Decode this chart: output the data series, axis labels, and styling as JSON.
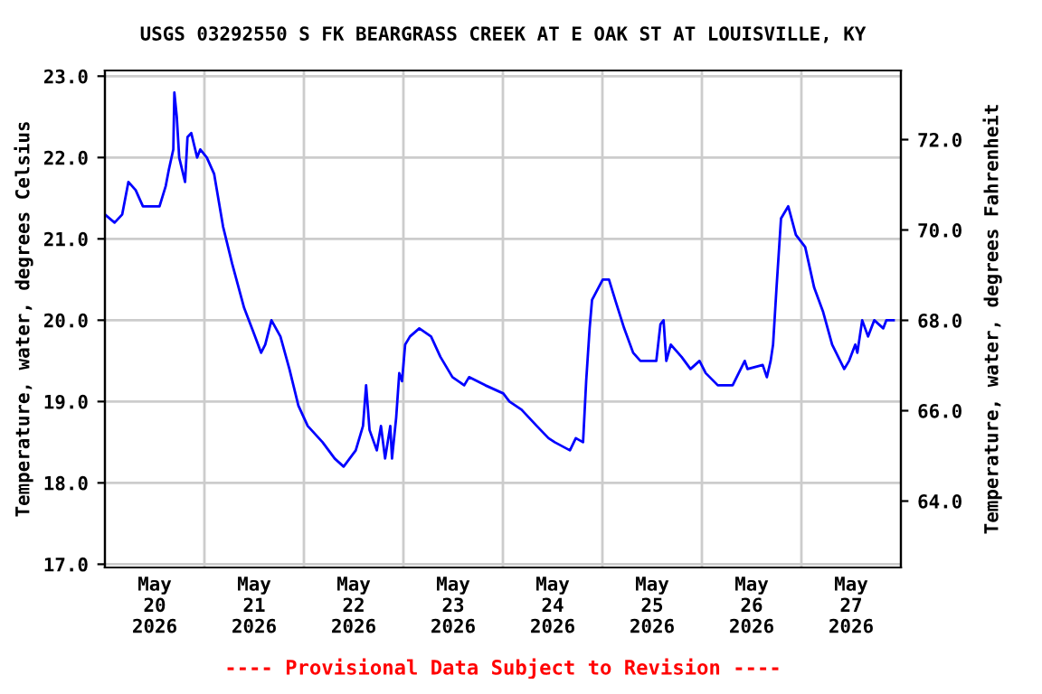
{
  "chart_data": {
    "type": "line",
    "title": "USGS 03292550 S FK BEARGRASS CREEK AT E OAK ST AT LOUISVILLE, KY",
    "ylabel": "Temperature, water, degrees Celsius",
    "y2label": "Temperature, water, degrees Fahrenheit",
    "annotations": [
      "---- Provisional Data Subject to Revision ----"
    ],
    "x": [
      "2026-05-20T00:00",
      "2026-05-20T02:20",
      "2026-05-20T04:10",
      "2026-05-20T05:40",
      "2026-05-20T07:25",
      "2026-05-20T09:10",
      "2026-05-20T13:10",
      "2026-05-20T14:40",
      "2026-05-20T15:25",
      "2026-05-20T16:30",
      "2026-05-20T16:45",
      "2026-05-20T17:20",
      "2026-05-20T17:55",
      "2026-05-20T19:20",
      "2026-05-20T19:55",
      "2026-05-20T20:50",
      "2026-05-20T22:15",
      "2026-05-20T23:00",
      "2026-05-21T00:35",
      "2026-05-21T02:20",
      "2026-05-21T04:30",
      "2026-05-21T06:40",
      "2026-05-21T09:35",
      "2026-05-21T11:50",
      "2026-05-21T13:40",
      "2026-05-21T14:40",
      "2026-05-21T16:10",
      "2026-05-21T18:20",
      "2026-05-21T20:30",
      "2026-05-21T22:40",
      "2026-05-22T00:55",
      "2026-05-22T04:30",
      "2026-05-22T07:25",
      "2026-05-22T09:35",
      "2026-05-22T12:30",
      "2026-05-22T14:15",
      "2026-05-22T15:00",
      "2026-05-22T15:50",
      "2026-05-22T17:35",
      "2026-05-22T18:35",
      "2026-05-22T19:35",
      "2026-05-22T20:50",
      "2026-05-22T21:15",
      "2026-05-22T22:15",
      "2026-05-22T23:00",
      "2026-05-22T23:40",
      "2026-05-23T00:25",
      "2026-05-23T01:35",
      "2026-05-23T03:50",
      "2026-05-23T06:40",
      "2026-05-23T08:55",
      "2026-05-23T11:50",
      "2026-05-23T14:40",
      "2026-05-23T15:50",
      "2026-05-23T19:45",
      "2026-05-24T00:05",
      "2026-05-24T01:35",
      "2026-05-24T04:30",
      "2026-05-24T08:10",
      "2026-05-24T11:00",
      "2026-05-24T12:30",
      "2026-05-24T16:10",
      "2026-05-24T17:35",
      "2026-05-24T19:20",
      "2026-05-24T20:05",
      "2026-05-24T20:55",
      "2026-05-24T21:30",
      "2026-05-25T00:05",
      "2026-05-25T01:35",
      "2026-05-25T03:05",
      "2026-05-25T05:15",
      "2026-05-25T07:25",
      "2026-05-25T09:10",
      "2026-05-25T13:00",
      "2026-05-25T14:00",
      "2026-05-25T14:45",
      "2026-05-25T15:25",
      "2026-05-25T16:30",
      "2026-05-25T19:05",
      "2026-05-25T21:15",
      "2026-05-25T23:25",
      "2026-05-26T00:55",
      "2026-05-26T03:50",
      "2026-05-26T07:25",
      "2026-05-26T10:20",
      "2026-05-26T11:00",
      "2026-05-26T14:40",
      "2026-05-26T15:40",
      "2026-05-26T16:35",
      "2026-05-26T17:10",
      "2026-05-26T18:00",
      "2026-05-26T19:05",
      "2026-05-26T20:50",
      "2026-05-26T22:40",
      "2026-05-27T00:55",
      "2026-05-27T03:05",
      "2026-05-27T05:15",
      "2026-05-27T07:25",
      "2026-05-27T10:20",
      "2026-05-27T11:30",
      "2026-05-27T13:00",
      "2026-05-27T13:30",
      "2026-05-27T14:40",
      "2026-05-27T16:05",
      "2026-05-27T17:35",
      "2026-05-27T19:45",
      "2026-05-27T20:30",
      "2026-05-27T22:15"
    ],
    "series": [
      {
        "color": "#0000ff",
        "values": [
          21.3,
          21.2,
          21.3,
          21.7,
          21.6,
          21.4,
          21.4,
          21.65,
          21.85,
          22.1,
          22.8,
          22.5,
          22.0,
          21.7,
          22.25,
          22.3,
          22.0,
          22.1,
          22.0,
          21.8,
          21.15,
          20.7,
          20.15,
          19.85,
          19.6,
          19.7,
          20.0,
          19.8,
          19.4,
          18.95,
          18.7,
          18.5,
          18.3,
          18.2,
          18.4,
          18.7,
          19.2,
          18.65,
          18.4,
          18.7,
          18.3,
          18.7,
          18.3,
          18.8,
          19.35,
          19.25,
          19.7,
          19.8,
          19.9,
          19.8,
          19.55,
          19.3,
          19.2,
          19.3,
          19.2,
          19.1,
          19.0,
          18.9,
          18.7,
          18.55,
          18.5,
          18.4,
          18.55,
          18.5,
          19.25,
          19.9,
          20.25,
          20.5,
          20.5,
          20.25,
          19.9,
          19.6,
          19.5,
          19.5,
          19.95,
          20.0,
          19.5,
          19.7,
          19.55,
          19.4,
          19.5,
          19.35,
          19.2,
          19.2,
          19.5,
          19.4,
          19.45,
          19.3,
          19.5,
          19.7,
          20.4,
          21.25,
          21.4,
          21.05,
          20.9,
          20.4,
          20.1,
          19.7,
          19.4,
          19.5,
          19.7,
          19.6,
          20.0,
          19.8,
          20.0,
          19.9,
          20.0,
          20.0
        ]
      }
    ],
    "xlim": [
      "2026-05-20T00:00",
      "2026-05-28T00:00"
    ],
    "xticks": [
      {
        "value": "2026-05-20T12:00",
        "label": "May\n20\n2026"
      },
      {
        "value": "2026-05-21T00:00",
        "label": null
      },
      {
        "value": "2026-05-21T12:00",
        "label": "May\n21\n2026"
      },
      {
        "value": "2026-05-22T00:00",
        "label": null
      },
      {
        "value": "2026-05-22T12:00",
        "label": "May\n22\n2026"
      },
      {
        "value": "2026-05-23T00:00",
        "label": null
      },
      {
        "value": "2026-05-23T12:00",
        "label": "May\n23\n2026"
      },
      {
        "value": "2026-05-24T00:00",
        "label": null
      },
      {
        "value": "2026-05-24T12:00",
        "label": "May\n24\n2026"
      },
      {
        "value": "2026-05-25T00:00",
        "label": null
      },
      {
        "value": "2026-05-25T12:00",
        "label": "May\n25\n2026"
      },
      {
        "value": "2026-05-26T00:00",
        "label": null
      },
      {
        "value": "2026-05-26T12:00",
        "label": "May\n26\n2026"
      },
      {
        "value": "2026-05-27T00:00",
        "label": null
      },
      {
        "value": "2026-05-27T12:00",
        "label": "May\n27\n2026"
      }
    ],
    "ylim": [
      16.96,
      23.07
    ],
    "yticks": [
      {
        "value": 17,
        "label": "17.0"
      },
      {
        "value": 18,
        "label": "18.0"
      },
      {
        "value": 19,
        "label": "19.0"
      },
      {
        "value": 20,
        "label": "20.0"
      },
      {
        "value": 21,
        "label": "21.0"
      },
      {
        "value": 22,
        "label": "22.0"
      },
      {
        "value": 23,
        "label": "23.0"
      }
    ],
    "y2lim": [
      62.53,
      73.53
    ],
    "y2ticks": [
      {
        "value": 64,
        "label": "64.0"
      },
      {
        "value": 66,
        "label": "66.0"
      },
      {
        "value": 68,
        "label": "68.0"
      },
      {
        "value": 70,
        "label": "70.0"
      },
      {
        "value": 72,
        "label": "72.0"
      }
    ],
    "grid": true,
    "legend": false,
    "marker": "none",
    "line_style": "solid"
  }
}
